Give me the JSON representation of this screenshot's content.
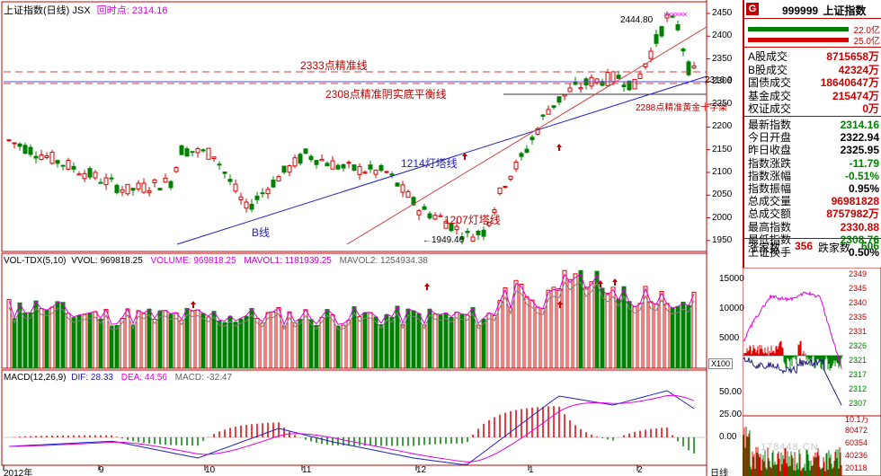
{
  "header": {
    "title": "上证指数(日线) JSX",
    "time_label": "回时点:",
    "time_value": "2314.16"
  },
  "main_axis": {
    "ticks": [
      "2450",
      "2400",
      "2350",
      "2300",
      "2250",
      "2200",
      "2150",
      "2100",
      "2050",
      "2000",
      "1950"
    ]
  },
  "annotations": {
    "line_2333": "2333点精准线",
    "line_2308": "2308点精准阴实底平衡线",
    "line_2288": "2288点精准黄金十字架",
    "line_1214": "1214灯塔线",
    "line_1207": "1207灯塔线",
    "b_line": "B线",
    "high_label": "2444.80",
    "low_label": "←1949.46",
    "last_label": "2316.9",
    "marks": "××××××"
  },
  "volume": {
    "header_name": "VOL-TDX(5,10)",
    "vvol": "VVOL: 969818.25",
    "volume": "VOLUME: 969818.25",
    "mavol1": "MAVOL1: 1181939.25",
    "mavol2": "MAVOL2: 1254934.38",
    "ticks": [
      "15000",
      "10000",
      "5000"
    ],
    "unit": "X100"
  },
  "macd": {
    "header_name": "MACD(12,26,9)",
    "dif": "DIF: 28.33",
    "dea": "DEA: 44.56",
    "macd": "MACD: -32.47",
    "ticks": [
      "50.00",
      "25.00",
      "0.00"
    ]
  },
  "date_axis": [
    "2012年",
    "9",
    "10",
    "11",
    "12",
    "1",
    "2"
  ],
  "period_label": "日线",
  "quote_panel": {
    "code": "999999",
    "name": "上证指数",
    "icon_letter": "G",
    "bar1_value": "22.0亿",
    "bar2_value": "25.0亿",
    "rows": [
      {
        "label": "A股成交",
        "value": "8715658万",
        "color": "red"
      },
      {
        "label": "B股成交",
        "value": "42324万",
        "color": "red"
      },
      {
        "label": "国债成交",
        "value": "18640647万",
        "color": "red"
      },
      {
        "label": "基金成交",
        "value": "215474万",
        "color": "red"
      },
      {
        "label": "权证成交",
        "value": "0万",
        "color": "red"
      },
      {
        "label": "最新指数",
        "value": "2314.16",
        "color": "green"
      },
      {
        "label": "今日开盘",
        "value": "2322.94",
        "color": "blk"
      },
      {
        "label": "昨日收盘",
        "value": "2325.95",
        "color": "blk"
      },
      {
        "label": "指数涨跌",
        "value": "-11.79",
        "color": "green"
      },
      {
        "label": "指数涨幅",
        "value": "-0.51%",
        "color": "green"
      },
      {
        "label": "指数振幅",
        "value": "0.95%",
        "color": "blk"
      },
      {
        "label": "总成交量",
        "value": "96981828",
        "color": "red"
      },
      {
        "label": "总成交额",
        "value": "8757982万",
        "color": "red"
      },
      {
        "label": "最高指数",
        "value": "2330.88",
        "color": "red"
      },
      {
        "label": "最低指数",
        "value": "2308.76",
        "color": "green"
      },
      {
        "label": "上证换手",
        "value": "0.50%",
        "color": "blk"
      }
    ],
    "up_label": "涨家数",
    "up_value": "356",
    "down_label": "跌家数",
    "down_value": "606"
  },
  "mini_chart": {
    "ticks": [
      "2349",
      "2345",
      "2340",
      "2335",
      "2331",
      "2326",
      "2321",
      "2317",
      "2312",
      "2307"
    ],
    "vol_ticks": [
      "10.1万",
      "80472",
      "60354",
      "40236",
      "20118"
    ],
    "watermark": "178448.CN"
  },
  "colors": {
    "up": "#e00000",
    "down": "#008000",
    "blue_line": "#2020c0",
    "pink": "#e000e0"
  }
}
